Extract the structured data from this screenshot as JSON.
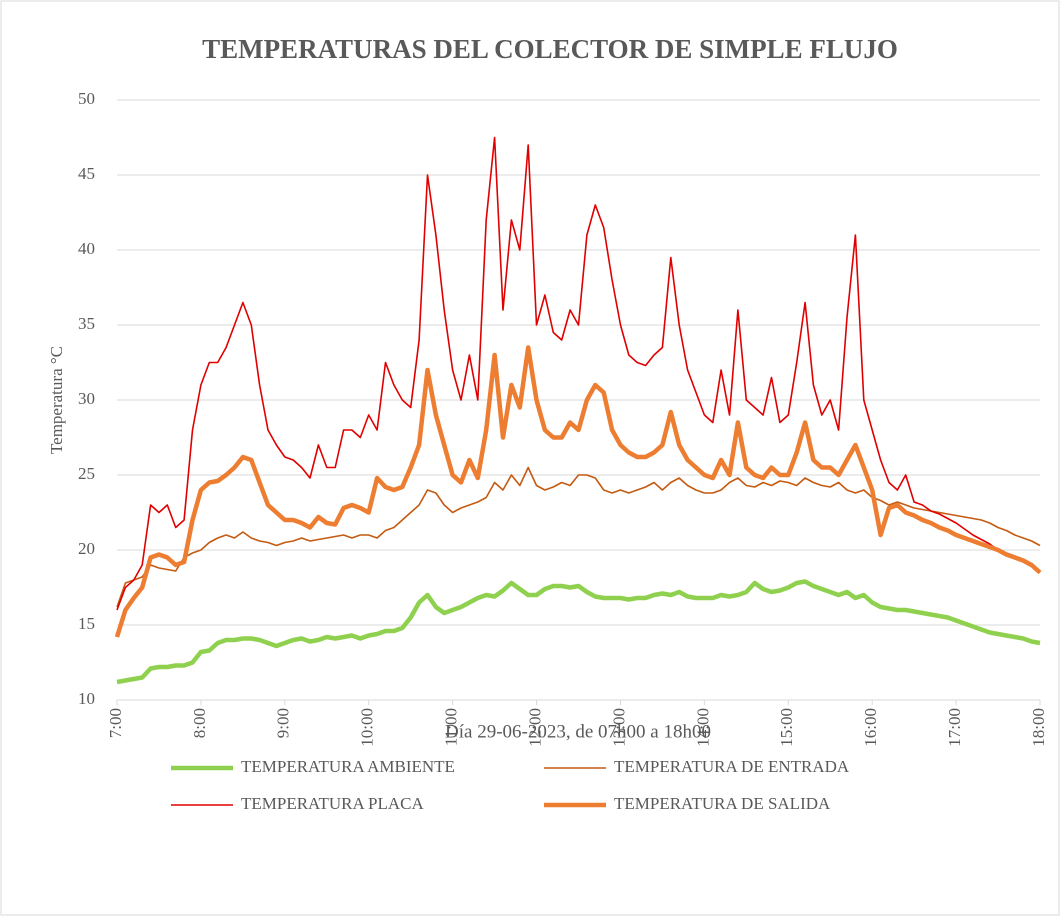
{
  "chart_data": {
    "type": "line",
    "title": "TEMPERATURAS DEL COLECTOR DE SIMPLE FLUJO",
    "x_label": "Día 29-06-2023, de 07h00 a 18h00",
    "y_label": "Temperatura °C",
    "x": [
      7,
      7.1,
      7.2,
      7.3,
      7.4,
      7.5,
      7.6,
      7.7,
      7.8,
      7.9,
      8,
      8.1,
      8.2,
      8.3,
      8.4,
      8.5,
      8.6,
      8.7,
      8.8,
      8.9,
      9,
      9.1,
      9.2,
      9.3,
      9.4,
      9.5,
      9.6,
      9.7,
      9.8,
      9.9,
      10,
      10.1,
      10.2,
      10.3,
      10.4,
      10.5,
      10.6,
      10.7,
      10.8,
      10.9,
      11,
      11.1,
      11.2,
      11.3,
      11.4,
      11.5,
      11.6,
      11.7,
      11.8,
      11.9,
      12,
      12.1,
      12.2,
      12.3,
      12.4,
      12.5,
      12.6,
      12.7,
      12.8,
      12.9,
      13,
      13.1,
      13.2,
      13.3,
      13.4,
      13.5,
      13.6,
      13.7,
      13.8,
      13.9,
      14,
      14.1,
      14.2,
      14.3,
      14.4,
      14.5,
      14.6,
      14.7,
      14.8,
      14.9,
      15,
      15.1,
      15.2,
      15.3,
      15.4,
      15.5,
      15.6,
      15.7,
      15.8,
      15.9,
      16,
      16.1,
      16.2,
      16.3,
      16.4,
      16.5,
      16.6,
      16.7,
      16.8,
      16.9,
      17,
      17.1,
      17.2,
      17.3,
      17.4,
      17.5,
      17.6,
      17.7,
      17.8,
      17.9,
      18
    ],
    "series": [
      {
        "name": "TEMPERATURA AMBIENTE",
        "color": "#8fd14f",
        "values": [
          11.2,
          11.3,
          11.4,
          11.5,
          12.1,
          12.2,
          12.2,
          12.3,
          12.3,
          12.5,
          13.2,
          13.3,
          13.8,
          14,
          14,
          14.1,
          14.1,
          14,
          13.8,
          13.6,
          13.8,
          14,
          14.1,
          13.9,
          14,
          14.2,
          14.1,
          14.2,
          14.3,
          14.1,
          14.3,
          14.4,
          14.6,
          14.6,
          14.8,
          15.5,
          16.5,
          17,
          16.2,
          15.8,
          16,
          16.2,
          16.5,
          16.8,
          17,
          16.9,
          17.3,
          17.8,
          17.4,
          17,
          17,
          17.4,
          17.6,
          17.6,
          17.5,
          17.6,
          17.2,
          16.9,
          16.8,
          16.8,
          16.8,
          16.7,
          16.8,
          16.8,
          17,
          17.1,
          17,
          17.2,
          16.9,
          16.8,
          16.8,
          16.8,
          17,
          16.9,
          17,
          17.2,
          17.8,
          17.4,
          17.2,
          17.3,
          17.5,
          17.8,
          17.9,
          17.6,
          17.4,
          17.2,
          17,
          17.2,
          16.8,
          17,
          16.5,
          16.2,
          16.1,
          16,
          16,
          15.9,
          15.8,
          15.7,
          15.6,
          15.5,
          15.3,
          15.1,
          14.9,
          14.7,
          14.5,
          14.4,
          14.3,
          14.2,
          14.1,
          13.9,
          13.8
        ]
      },
      {
        "name": "TEMPERATURA DE ENTRADA",
        "color": "#c55a11",
        "values": [
          16.2,
          17.8,
          18,
          18.2,
          19,
          18.8,
          18.7,
          18.6,
          19.5,
          19.8,
          20,
          20.5,
          20.8,
          21,
          20.8,
          21.2,
          20.8,
          20.6,
          20.5,
          20.3,
          20.5,
          20.6,
          20.8,
          20.6,
          20.7,
          20.8,
          20.9,
          21,
          20.8,
          21,
          21,
          20.8,
          21.3,
          21.5,
          22,
          22.5,
          23,
          24,
          23.8,
          23,
          22.5,
          22.8,
          23,
          23.2,
          23.5,
          24.5,
          24,
          25,
          24.3,
          25.5,
          24.3,
          24,
          24.2,
          24.5,
          24.3,
          25,
          25,
          24.8,
          24,
          23.8,
          24,
          23.8,
          24,
          24.2,
          24.5,
          24,
          24.5,
          24.8,
          24.3,
          24,
          23.8,
          23.8,
          24,
          24.5,
          24.8,
          24.3,
          24.2,
          24.5,
          24.3,
          24.6,
          24.5,
          24.3,
          24.8,
          24.5,
          24.3,
          24.2,
          24.5,
          24,
          23.8,
          24,
          23.5,
          23.3,
          23,
          23.2,
          23,
          22.8,
          22.7,
          22.6,
          22.5,
          22.4,
          22.3,
          22.2,
          22.1,
          22,
          21.8,
          21.5,
          21.3,
          21,
          20.8,
          20.6,
          20.3
        ]
      },
      {
        "name": "TEMPERATURA PLACA",
        "color": "#e00000",
        "values": [
          16,
          17.5,
          18,
          19,
          23,
          22.5,
          23,
          21.5,
          22,
          28,
          31,
          32.5,
          32.5,
          33.5,
          35,
          36.5,
          35,
          31,
          28,
          27,
          26.2,
          26,
          25.5,
          24.8,
          27,
          25.5,
          25.5,
          28,
          28,
          27.5,
          29,
          28,
          32.5,
          31,
          30,
          29.5,
          34,
          45,
          41,
          36,
          32,
          30,
          33,
          30,
          42,
          47.5,
          36,
          42,
          40,
          47,
          35,
          37,
          34.5,
          34,
          36,
          35,
          41,
          43,
          41.5,
          38,
          35,
          33,
          32.5,
          32.3,
          33,
          33.5,
          39.5,
          35,
          32,
          30.5,
          29,
          28.5,
          32,
          29,
          36,
          30,
          29.5,
          29,
          31.5,
          28.5,
          29,
          32.5,
          36.5,
          31,
          29,
          30,
          28,
          35.5,
          41,
          30,
          28,
          26,
          24.5,
          24,
          25,
          23.2,
          23,
          22.6,
          22.4,
          22.1,
          21.8,
          21.4,
          21,
          20.7,
          20.4,
          20,
          19.8,
          19.6,
          19.2,
          18.9,
          18.5
        ]
      },
      {
        "name": "TEMPERATURA DE SALIDA",
        "color": "#ed7d31",
        "values": [
          14.2,
          16,
          16.8,
          17.5,
          19.5,
          19.7,
          19.5,
          19,
          19.2,
          22,
          24,
          24.5,
          24.6,
          25,
          25.5,
          26.2,
          26,
          24.5,
          23,
          22.5,
          22,
          22,
          21.8,
          21.5,
          22.2,
          21.8,
          21.7,
          22.8,
          23,
          22.8,
          22.5,
          24.8,
          24.2,
          24,
          24.2,
          25.5,
          27,
          32,
          29,
          27,
          25,
          24.5,
          26,
          24.8,
          28,
          33,
          27.5,
          31,
          29.5,
          33.5,
          30,
          28,
          27.5,
          27.5,
          28.5,
          28,
          30,
          31,
          30.5,
          28,
          27,
          26.5,
          26.2,
          26.2,
          26.5,
          27,
          29.2,
          27,
          26,
          25.5,
          25,
          24.8,
          26,
          25,
          28.5,
          25.5,
          25,
          24.8,
          25.5,
          25,
          25,
          26.5,
          28.5,
          26,
          25.5,
          25.5,
          25,
          26,
          27,
          25.5,
          24,
          21,
          22.8,
          23,
          22.5,
          22.3,
          22,
          21.8,
          21.5,
          21.3,
          21,
          20.8,
          20.6,
          20.4,
          20.2,
          20,
          19.7,
          19.5,
          19.3,
          19,
          18.5
        ]
      }
    ],
    "xlim": [
      7,
      18
    ],
    "xticks": [
      {
        "value": 7,
        "label": "7:00"
      },
      {
        "value": 8,
        "label": "8:00"
      },
      {
        "value": 9,
        "label": "9:00"
      },
      {
        "value": 10,
        "label": "10:00"
      },
      {
        "value": 11,
        "label": "11:00"
      },
      {
        "value": 12,
        "label": "12:00"
      },
      {
        "value": 13,
        "label": "13:00"
      },
      {
        "value": 14,
        "label": "14:00"
      },
      {
        "value": 15,
        "label": "15:00"
      },
      {
        "value": 16,
        "label": "16:00"
      },
      {
        "value": 17,
        "label": "17:00"
      },
      {
        "value": 18,
        "label": "18:00"
      }
    ],
    "ylim": [
      10,
      50
    ],
    "yticks": [
      10,
      15,
      20,
      25,
      30,
      35,
      40,
      45,
      50
    ],
    "grid": true,
    "legend": "bottom"
  }
}
